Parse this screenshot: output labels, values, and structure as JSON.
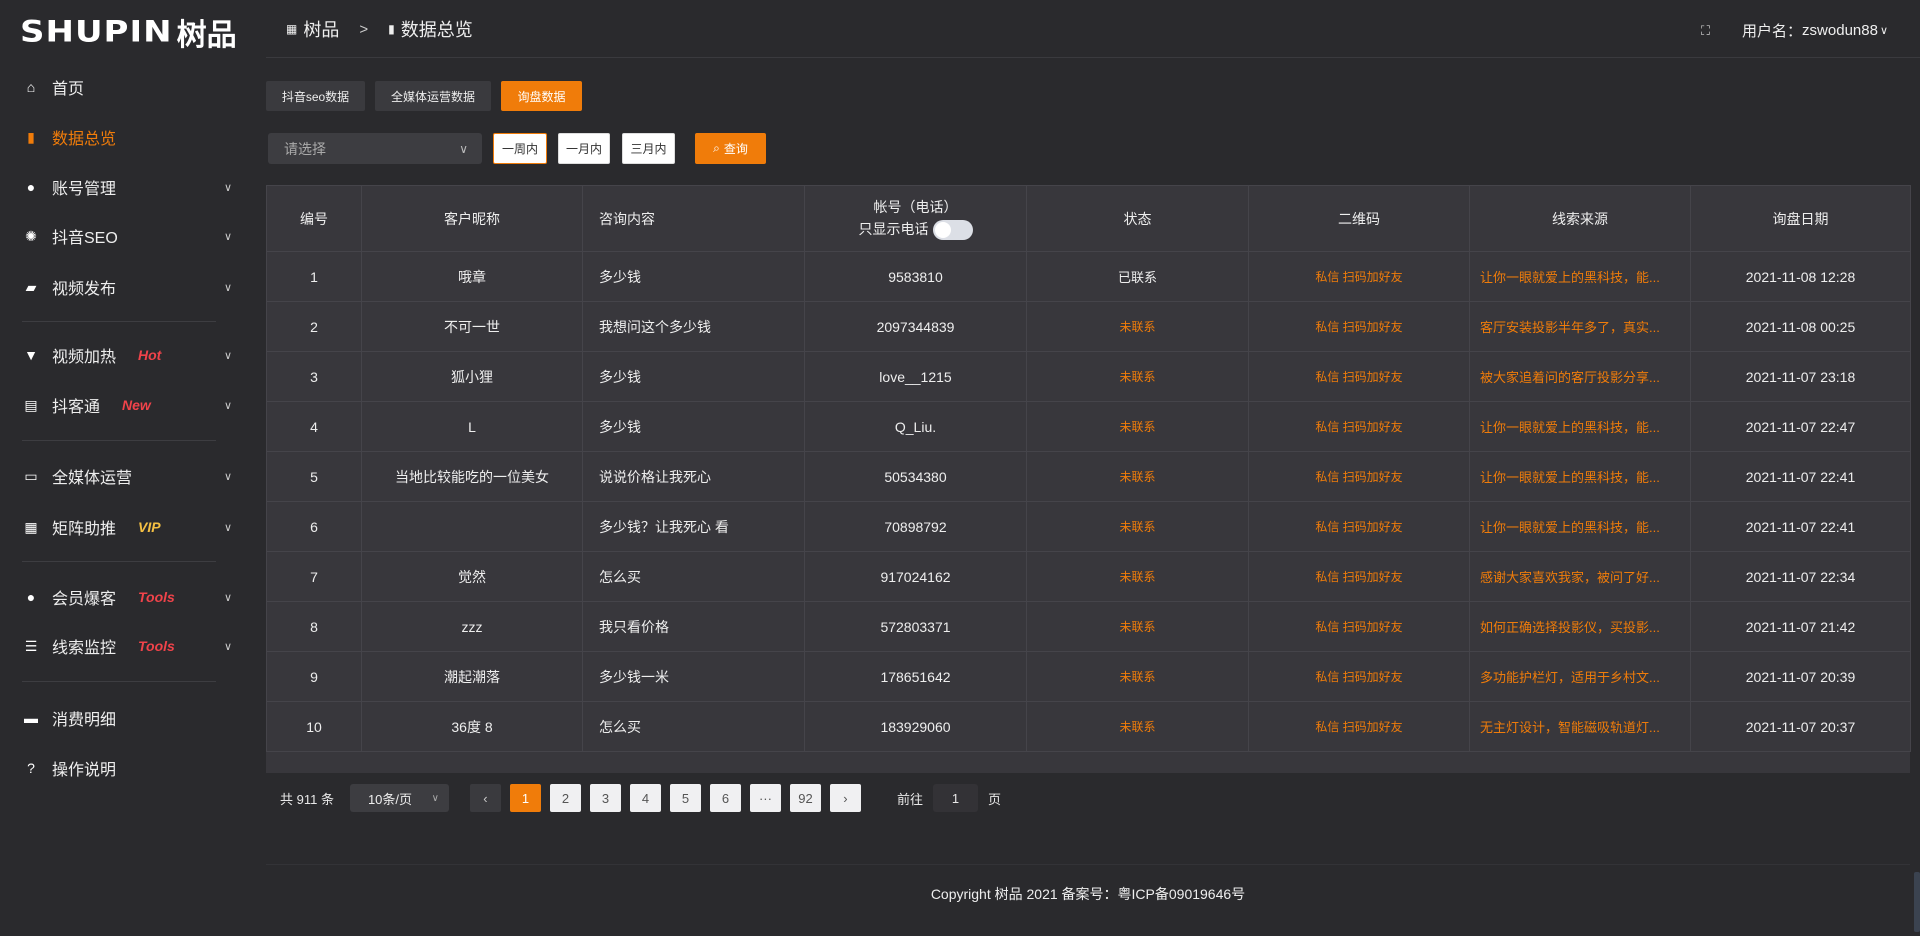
{
  "brand": {
    "logo_en": "SHUPIN",
    "logo_cn": "树品"
  },
  "sidebar": {
    "items": [
      {
        "label": "首页",
        "icon": "home-icon"
      },
      {
        "label": "数据总览",
        "icon": "bar-chart-icon",
        "active": true
      },
      {
        "label": "账号管理",
        "icon": "user-icon"
      },
      {
        "label": "抖音SEO",
        "icon": "gear-icon"
      },
      {
        "label": "视频发布",
        "icon": "video-camera-icon"
      },
      {
        "label": "视频加热",
        "icon": "flag-icon",
        "badge": "Hot"
      },
      {
        "label": "抖客通",
        "icon": "chat-icon",
        "badge": "New"
      },
      {
        "label": "全媒体运营",
        "icon": "monitor-icon"
      },
      {
        "label": "矩阵助推",
        "icon": "grid-icon",
        "badge": "VIP"
      },
      {
        "label": "会员爆客",
        "icon": "user-icon",
        "badge": "Tools"
      },
      {
        "label": "线索监控",
        "icon": "sliders-icon",
        "badge": "Tools"
      },
      {
        "label": "消费明细",
        "icon": "wallet-icon"
      },
      {
        "label": "操作说明",
        "icon": "question-icon"
      }
    ]
  },
  "colors": {
    "accent": "#f07c0a",
    "badge_red": "#f0434a",
    "badge_vip": "#f5c043"
  },
  "header": {
    "breadcrumb": [
      "树品",
      "数据总览"
    ],
    "breadcrumb_sep": ">",
    "user_label": "用户名：",
    "username": "zswodun88"
  },
  "tabs": [
    "抖音seo数据",
    "全媒体运营数据",
    "询盘数据"
  ],
  "filters": {
    "select_placeholder": "请选择",
    "ranges": [
      "一周内",
      "一月内",
      "三月内"
    ],
    "query_label": "查询"
  },
  "table": {
    "headers": [
      "编号",
      "客户昵称",
      "咨询内容",
      "帐号（电话）",
      "状态",
      "二维码",
      "线索来源",
      "询盘日期"
    ],
    "phone_only_label": "只显示电话",
    "phone_only": false,
    "rows": [
      [
        "1",
        "哦章",
        "多少钱",
        "9583810",
        "已联系",
        "私信 扫码加好友",
        "让你一眼就爱上的黑科技，能...",
        "2021-11-08 12:28"
      ],
      [
        "2",
        "不可一世",
        "我想问这个多少钱",
        "2097344839",
        "未联系",
        "私信 扫码加好友",
        "客厅安装投影半年多了，真实...",
        "2021-11-08 00:25"
      ],
      [
        "3",
        "狐小狸",
        "多少钱",
        "love__1215",
        "未联系",
        "私信 扫码加好友",
        "被大家追着问的客厅投影分享...",
        "2021-11-07 23:18"
      ],
      [
        "4",
        "L",
        "多少钱",
        "Q_Liu.",
        "未联系",
        "私信 扫码加好友",
        "让你一眼就爱上的黑科技，能...",
        "2021-11-07 22:47"
      ],
      [
        "5",
        "当地比较能吃的一位美女",
        "说说价格让我死心",
        "50534380",
        "未联系",
        "私信 扫码加好友",
        "让你一眼就爱上的黑科技，能...",
        "2021-11-07 22:41"
      ],
      [
        "6",
        "",
        "多少钱？让我死心 看",
        "70898792",
        "未联系",
        "私信 扫码加好友",
        "让你一眼就爱上的黑科技，能...",
        "2021-11-07 22:41"
      ],
      [
        "7",
        "觉然",
        "怎么买",
        "917024162",
        "未联系",
        "私信 扫码加好友",
        "感谢大家喜欢我家，被问了好...",
        "2021-11-07 22:34"
      ],
      [
        "8",
        "zzz",
        "我只看价格",
        "572803371",
        "未联系",
        "私信 扫码加好友",
        "如何正确选择投影仪，买投影...",
        "2021-11-07 21:42"
      ],
      [
        "9",
        "潮起潮落",
        "多少钱一米",
        "178651642",
        "未联系",
        "私信 扫码加好友",
        "多功能护栏灯，适用于乡村文...",
        "2021-11-07 20:39"
      ],
      [
        "10",
        "36度 8",
        "怎么买",
        "183929060",
        "未联系",
        "私信 扫码加好友",
        "无主灯设计，智能磁吸轨道灯...",
        "2021-11-07 20:37"
      ]
    ]
  },
  "pagination": {
    "total_label": "共 911 条",
    "page_size": "10条/页",
    "pages": [
      "1",
      "2",
      "3",
      "4",
      "5",
      "6",
      "···",
      "92"
    ],
    "current": "1",
    "goto_label": "前往",
    "goto_value": "1",
    "page_suffix": "页"
  },
  "footer": {
    "copyright": "Copyright 树品 2021 备案号：粤ICP备09019646号"
  }
}
